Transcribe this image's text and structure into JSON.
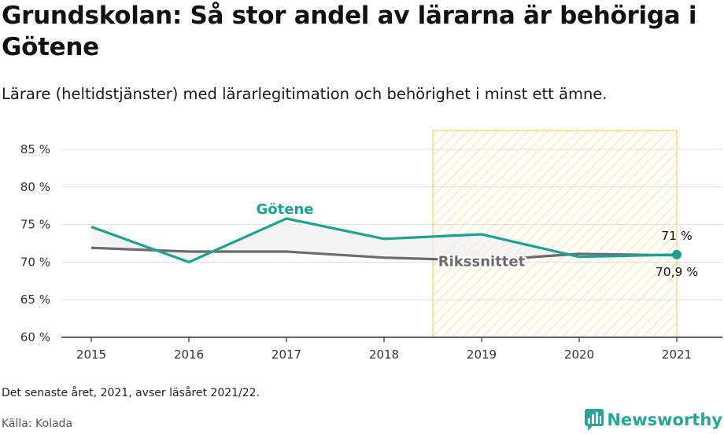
{
  "title": "Grundskolan: Så stor andel av lärarna är behöriga i Götene",
  "subtitle": "Lärare (heltidstjänster) med lärarlegitimation och behörighet i minst ett ämne.",
  "footnote": "Det senaste året, 2021, avser läsåret 2021/22.",
  "source": "Källa: Kolada",
  "brand": {
    "name": "Newsworthy",
    "icon": "newsworthy-logo-icon"
  },
  "colors": {
    "gotene": "#1aa394",
    "riks": "#6e6b70",
    "highlight": "#f6cf5c",
    "grid": "#dddddd"
  },
  "chart_data": {
    "type": "line",
    "x": [
      "2015",
      "2016",
      "2017",
      "2018",
      "2019",
      "2020",
      "2021"
    ],
    "ylim": [
      60,
      85
    ],
    "yticks": [
      60,
      65,
      70,
      75,
      80,
      85
    ],
    "ytick_labels": [
      "60 %",
      "65 %",
      "70 %",
      "75 %",
      "80 %",
      "85 %"
    ],
    "highlight_range": [
      "2019",
      "2021"
    ],
    "series": [
      {
        "name": "Götene",
        "values": [
          74.7,
          70.0,
          75.8,
          73.1,
          73.7,
          70.7,
          71.0
        ],
        "last_label": "71 %"
      },
      {
        "name": "Rikssnittet",
        "values": [
          71.9,
          71.4,
          71.4,
          70.6,
          70.2,
          71.1,
          70.9
        ],
        "last_label": "70,9 %"
      }
    ]
  }
}
